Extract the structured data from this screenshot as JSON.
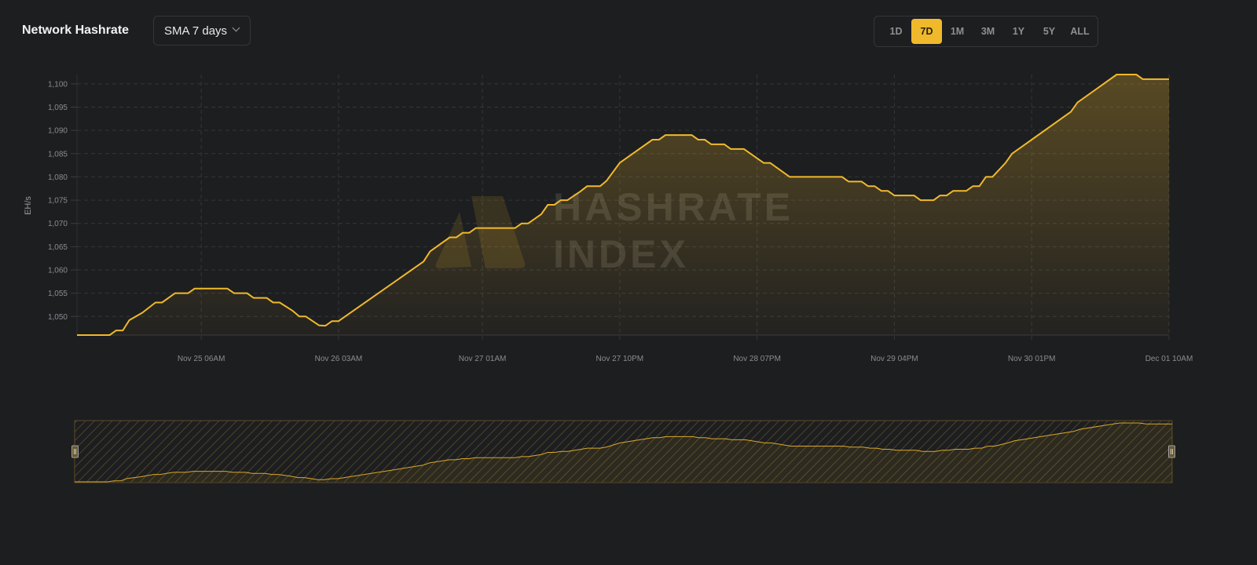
{
  "header": {
    "title": "Network Hashrate",
    "smoothing_select": {
      "value": "SMA 7 days",
      "icon": "chevron-down-icon"
    },
    "ranges": [
      {
        "label": "1D",
        "active": false
      },
      {
        "label": "7D",
        "active": true
      },
      {
        "label": "1M",
        "active": false
      },
      {
        "label": "3M",
        "active": false
      },
      {
        "label": "1Y",
        "active": false
      },
      {
        "label": "5Y",
        "active": false
      },
      {
        "label": "ALL",
        "active": false
      }
    ]
  },
  "watermark": {
    "text_line1": "HASHRATE",
    "text_line2": "INDEX"
  },
  "colors": {
    "accent": "#f0b92c",
    "background": "#1d1e20",
    "grid": "#34363a"
  },
  "chart_data": {
    "type": "area",
    "ylabel": "EH/s",
    "xlabel": "",
    "ylim": [
      1046,
      1102
    ],
    "xlim": [
      "Nov 24 11:00",
      "Dec 01 10:00"
    ],
    "grid": true,
    "yticks": [
      1050,
      1055,
      1060,
      1065,
      1070,
      1075,
      1080,
      1085,
      1090,
      1095,
      1100
    ],
    "ytick_labels": [
      "1,050",
      "1,055",
      "1,060",
      "1,065",
      "1,070",
      "1,075",
      "1,080",
      "1,085",
      "1,090",
      "1,095",
      "1,100"
    ],
    "xticks": [
      {
        "at": "Nov 25 06:00",
        "label": "Nov 25 06AM"
      },
      {
        "at": "Nov 26 03:00",
        "label": "Nov 26 03AM"
      },
      {
        "at": "Nov 27 01:00",
        "label": "Nov 27 01AM"
      },
      {
        "at": "Nov 27 22:00",
        "label": "Nov 27 10PM"
      },
      {
        "at": "Nov 28 19:00",
        "label": "Nov 28 07PM"
      },
      {
        "at": "Nov 29 16:00",
        "label": "Nov 29 04PM"
      },
      {
        "at": "Nov 30 13:00",
        "label": "Nov 30 01PM"
      },
      {
        "at": "Dec 01 10:00",
        "label": "Dec 01 10AM"
      }
    ],
    "points": [
      [
        "Nov 24 11:00",
        1046
      ],
      [
        "Nov 24 16:00",
        1046
      ],
      [
        "Nov 24 17:00",
        1047
      ],
      [
        "Nov 24 18:00",
        1047
      ],
      [
        "Nov 24 19:00",
        1049.2
      ],
      [
        "Nov 24 21:00",
        1050.8
      ],
      [
        "Nov 24 23:00",
        1053
      ],
      [
        "Nov 25 00:00",
        1053
      ],
      [
        "Nov 25 02:00",
        1055
      ],
      [
        "Nov 25 04:00",
        1055
      ],
      [
        "Nov 25 05:00",
        1056
      ],
      [
        "Nov 25 10:00",
        1056
      ],
      [
        "Nov 25 11:00",
        1055
      ],
      [
        "Nov 25 13:00",
        1055
      ],
      [
        "Nov 25 14:00",
        1054
      ],
      [
        "Nov 25 16:00",
        1054
      ],
      [
        "Nov 25 17:00",
        1053
      ],
      [
        "Nov 25 18:00",
        1053
      ],
      [
        "Nov 25 20:00",
        1051.2
      ],
      [
        "Nov 25 21:00",
        1050
      ],
      [
        "Nov 25 22:00",
        1050
      ],
      [
        "Nov 26 00:00",
        1048.1
      ],
      [
        "Nov 26 01:00",
        1048
      ],
      [
        "Nov 26 02:00",
        1049
      ],
      [
        "Nov 26 03:00",
        1049
      ],
      [
        "Nov 26 16:00",
        1061.8
      ],
      [
        "Nov 26 17:00",
        1064
      ],
      [
        "Nov 26 20:00",
        1067
      ],
      [
        "Nov 26 21:00",
        1067
      ],
      [
        "Nov 26 22:00",
        1068
      ],
      [
        "Nov 26 23:00",
        1068
      ],
      [
        "Nov 27 00:00",
        1069
      ],
      [
        "Nov 27 06:00",
        1069
      ],
      [
        "Nov 27 07:00",
        1070
      ],
      [
        "Nov 27 08:00",
        1070
      ],
      [
        "Nov 27 10:00",
        1072
      ],
      [
        "Nov 27 11:00",
        1074
      ],
      [
        "Nov 27 12:00",
        1074
      ],
      [
        "Nov 27 13:00",
        1075
      ],
      [
        "Nov 27 14:00",
        1075
      ],
      [
        "Nov 27 16:00",
        1076.9
      ],
      [
        "Nov 27 17:00",
        1078
      ],
      [
        "Nov 27 19:00",
        1078
      ],
      [
        "Nov 27 20:00",
        1079.2
      ],
      [
        "Nov 27 22:00",
        1083
      ],
      [
        "Nov 28 03:00",
        1088
      ],
      [
        "Nov 28 04:00",
        1088
      ],
      [
        "Nov 28 05:00",
        1089
      ],
      [
        "Nov 28 09:00",
        1089
      ],
      [
        "Nov 28 10:00",
        1088
      ],
      [
        "Nov 28 11:00",
        1088
      ],
      [
        "Nov 28 12:00",
        1087
      ],
      [
        "Nov 28 14:00",
        1087
      ],
      [
        "Nov 28 15:00",
        1086
      ],
      [
        "Nov 28 17:00",
        1086
      ],
      [
        "Nov 28 20:00",
        1083
      ],
      [
        "Nov 28 21:00",
        1083
      ],
      [
        "Nov 29 00:00",
        1080
      ],
      [
        "Nov 29 08:00",
        1080
      ],
      [
        "Nov 29 09:00",
        1079
      ],
      [
        "Nov 29 11:00",
        1079
      ],
      [
        "Nov 29 12:00",
        1078
      ],
      [
        "Nov 29 13:00",
        1078
      ],
      [
        "Nov 29 14:00",
        1077
      ],
      [
        "Nov 29 15:00",
        1077
      ],
      [
        "Nov 29 16:00",
        1076
      ],
      [
        "Nov 29 19:00",
        1076
      ],
      [
        "Nov 29 20:00",
        1075
      ],
      [
        "Nov 29 22:00",
        1075
      ],
      [
        "Nov 29 23:00",
        1076
      ],
      [
        "Nov 30 00:00",
        1076
      ],
      [
        "Nov 30 01:00",
        1077
      ],
      [
        "Nov 30 03:00",
        1077
      ],
      [
        "Nov 30 04:00",
        1078
      ],
      [
        "Nov 30 05:00",
        1078
      ],
      [
        "Nov 30 06:00",
        1080
      ],
      [
        "Nov 30 07:00",
        1080
      ],
      [
        "Nov 30 09:00",
        1083
      ],
      [
        "Nov 30 10:00",
        1085
      ],
      [
        "Nov 30 12:00",
        1087
      ],
      [
        "Nov 30 13:00",
        1088
      ],
      [
        "Nov 30 19:00",
        1094
      ],
      [
        "Nov 30 20:00",
        1096
      ],
      [
        "Dec 01 02:00",
        1102
      ],
      [
        "Dec 01 05:00",
        1102
      ],
      [
        "Dec 01 06:00",
        1101
      ],
      [
        "Dec 01 10:00",
        1101
      ]
    ]
  }
}
